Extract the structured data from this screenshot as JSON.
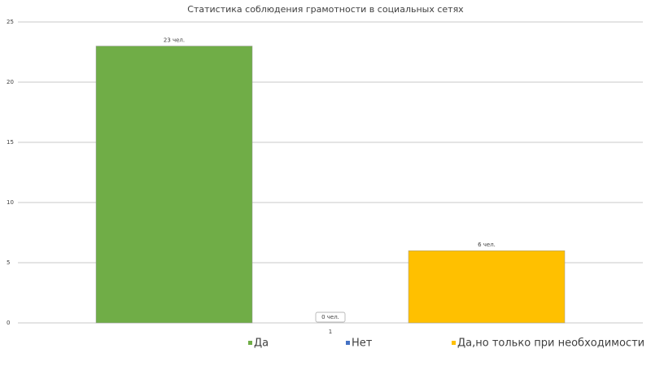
{
  "chart_data": {
    "type": "bar",
    "title": "Статистика соблюдения грамотности в социальных сетях",
    "categories": [
      "1"
    ],
    "series": [
      {
        "name": "Да",
        "color": "#70ad47",
        "values": [
          23
        ],
        "value_labels": [
          "23 чел."
        ]
      },
      {
        "name": "Нет",
        "color": "#4472c4",
        "values": [
          0
        ],
        "value_labels": [
          "0 чел."
        ]
      },
      {
        "name": "Да,но только при необходимости",
        "color": "#ffc000",
        "values": [
          6
        ],
        "value_labels": [
          "6 чел."
        ]
      }
    ],
    "ylim": [
      0,
      25
    ],
    "yticks": [
      0,
      5,
      10,
      15,
      20,
      25
    ],
    "grid": true,
    "legend": "bottom"
  }
}
